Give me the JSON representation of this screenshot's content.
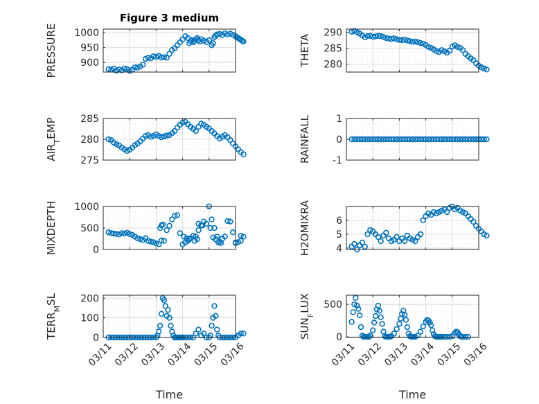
{
  "figure": {
    "title": "Figure 3 medium"
  },
  "colors": {
    "marker": "#0072BD",
    "axis": "#262626",
    "grid": "#dcdcdc"
  },
  "chart_data": [
    {
      "type": "scatter",
      "ylabel": "PRESSURE",
      "yticks": [
        900,
        950,
        1000
      ],
      "ylim": [
        868,
        1012
      ],
      "title": "Figure 3 medium",
      "grid": true,
      "x": [
        0.2,
        0.3,
        0.4,
        0.5,
        0.6,
        0.7,
        0.8,
        0.9,
        1.0,
        1.1,
        1.2,
        1.3,
        1.4,
        1.5,
        1.6,
        1.7,
        1.8,
        1.9,
        2.0,
        2.1,
        2.2,
        2.3,
        2.4,
        2.5,
        2.6,
        2.7,
        2.8,
        2.9,
        3.0,
        3.1,
        3.2,
        3.25,
        3.3,
        3.35,
        3.4,
        3.45,
        3.5,
        3.55,
        3.6,
        3.65,
        3.7,
        3.8,
        3.9,
        4.0,
        4.1,
        4.15,
        4.2,
        4.25,
        4.3,
        4.4,
        4.5,
        4.6,
        4.7,
        4.8,
        4.9,
        5.0,
        5.05,
        5.1,
        5.15,
        5.2,
        5.25,
        5.3
      ],
      "y": [
        878,
        876,
        880,
        873,
        877,
        874,
        880,
        878,
        872,
        876,
        884,
        883,
        887,
        893,
        912,
        916,
        914,
        921,
        919,
        922,
        917,
        918,
        916,
        929,
        942,
        948,
        958,
        968,
        978,
        988,
        982,
        965,
        972,
        975,
        968,
        972,
        978,
        982,
        975,
        970,
        978,
        973,
        969,
        975,
        958,
        965,
        985,
        990,
        994,
        996,
        992,
        998,
        994,
        997,
        993,
        988,
        985,
        982,
        979,
        976,
        973,
        970
      ]
    },
    {
      "type": "scatter",
      "ylabel": "THETA",
      "yticks": [
        280,
        285,
        290
      ],
      "ylim": [
        277.5,
        291
      ],
      "grid": true,
      "x": [
        0.2,
        0.3,
        0.4,
        0.5,
        0.6,
        0.7,
        0.8,
        0.9,
        1.0,
        1.1,
        1.2,
        1.3,
        1.4,
        1.5,
        1.6,
        1.7,
        1.8,
        1.9,
        2.0,
        2.1,
        2.2,
        2.3,
        2.4,
        2.5,
        2.6,
        2.7,
        2.8,
        2.9,
        3.0,
        3.1,
        3.2,
        3.3,
        3.4,
        3.5,
        3.6,
        3.7,
        3.8,
        3.9,
        4.0,
        4.1,
        4.2,
        4.3,
        4.4,
        4.5,
        4.6,
        4.7,
        4.8,
        4.9,
        5.0,
        5.1,
        5.2,
        5.3
      ],
      "y": [
        290.2,
        290.4,
        290.0,
        289.6,
        289.0,
        288.4,
        288.8,
        288.9,
        288.6,
        288.7,
        288.9,
        288.8,
        288.5,
        288.2,
        288.0,
        287.9,
        288.1,
        287.8,
        287.6,
        287.5,
        287.7,
        287.4,
        287.2,
        287.0,
        287.1,
        286.9,
        286.6,
        286.4,
        286.0,
        285.4,
        285.1,
        284.6,
        284.1,
        283.8,
        284.4,
        284.0,
        283.6,
        284.2,
        285.5,
        285.9,
        285.4,
        285.1,
        284.4,
        283.2,
        282.5,
        281.8,
        281.2,
        280.3,
        279.5,
        279.0,
        278.6,
        278.3
      ]
    },
    {
      "type": "scatter",
      "ylabel": "AIR_TEMP",
      "yticks": [
        275,
        280,
        285
      ],
      "ylim": [
        275,
        285
      ],
      "grid": true,
      "x": [
        0.2,
        0.3,
        0.4,
        0.5,
        0.6,
        0.7,
        0.8,
        0.9,
        1.0,
        1.1,
        1.2,
        1.3,
        1.4,
        1.5,
        1.6,
        1.7,
        1.8,
        1.9,
        2.0,
        2.1,
        2.2,
        2.3,
        2.4,
        2.5,
        2.6,
        2.7,
        2.8,
        2.9,
        3.0,
        3.1,
        3.2,
        3.3,
        3.4,
        3.5,
        3.6,
        3.7,
        3.8,
        3.9,
        4.0,
        4.1,
        4.2,
        4.3,
        4.4,
        4.5,
        4.6,
        4.7,
        4.8,
        4.9,
        5.0,
        5.1,
        5.2,
        5.3
      ],
      "y": [
        280.0,
        279.8,
        279.2,
        278.8,
        278.5,
        278.0,
        277.6,
        277.2,
        277.5,
        278.0,
        278.6,
        279.0,
        279.5,
        280.2,
        280.8,
        281.0,
        280.6,
        280.8,
        281.2,
        280.8,
        280.5,
        280.7,
        280.9,
        281.0,
        281.5,
        282.0,
        282.8,
        283.5,
        284.0,
        284.2,
        283.6,
        283.0,
        282.5,
        282.0,
        283.0,
        283.8,
        283.5,
        283.0,
        282.6,
        282.0,
        281.4,
        280.8,
        280.2,
        280.6,
        281.0,
        280.5,
        279.8,
        279.0,
        278.3,
        277.6,
        276.9,
        276.4
      ]
    },
    {
      "type": "scatter",
      "ylabel": "RAINFALL",
      "yticks": [
        -1,
        0,
        1
      ],
      "ylim": [
        -1,
        1
      ],
      "grid": true,
      "x": [
        0.2,
        0.3,
        0.4,
        0.5,
        0.6,
        0.7,
        0.8,
        0.9,
        1.0,
        1.1,
        1.2,
        1.3,
        1.4,
        1.5,
        1.6,
        1.7,
        1.8,
        1.9,
        2.0,
        2.1,
        2.2,
        2.3,
        2.4,
        2.5,
        2.6,
        2.7,
        2.8,
        2.9,
        3.0,
        3.1,
        3.2,
        3.3,
        3.4,
        3.5,
        3.6,
        3.7,
        3.8,
        3.9,
        4.0,
        4.1,
        4.2,
        4.3,
        4.4,
        4.5,
        4.6,
        4.7,
        4.8,
        4.9,
        5.0,
        5.1,
        5.2,
        5.3
      ],
      "y": [
        0,
        0,
        0,
        0,
        0,
        0,
        0,
        0,
        0,
        0,
        0,
        0,
        0,
        0,
        0,
        0,
        0,
        0,
        0,
        0,
        0,
        0,
        0,
        0,
        0,
        0,
        0,
        0,
        0,
        0,
        0,
        0,
        0,
        0,
        0,
        0,
        0,
        0,
        0,
        0,
        0,
        0,
        0,
        0,
        0,
        0,
        0,
        0,
        0,
        0,
        0,
        0
      ]
    },
    {
      "type": "scatter",
      "ylabel": "MIXDEPTH",
      "yticks": [
        0,
        500,
        1000
      ],
      "ylim": [
        0,
        1000
      ],
      "grid": true,
      "x": [
        0.2,
        0.3,
        0.4,
        0.5,
        0.6,
        0.7,
        0.8,
        0.9,
        1.0,
        1.1,
        1.2,
        1.3,
        1.4,
        1.5,
        1.6,
        1.7,
        1.8,
        1.9,
        2.0,
        2.1,
        2.2,
        2.3,
        2.4,
        2.5,
        2.6,
        2.7,
        2.8,
        2.9,
        3.0,
        3.1,
        3.2,
        3.3,
        3.4,
        3.5,
        3.6,
        3.7,
        3.8,
        3.9,
        4.0,
        4.1,
        4.2,
        4.3,
        4.4,
        4.5,
        4.6,
        4.7,
        4.8,
        4.9,
        5.0,
        5.1,
        5.2,
        5.3,
        2.15,
        2.2,
        2.25,
        3.05,
        3.15,
        3.25,
        3.45,
        3.55,
        3.6,
        3.75,
        4.05,
        4.15,
        4.25,
        4.35,
        4.45,
        5.0,
        5.2
      ],
      "y": [
        400,
        380,
        370,
        360,
        350,
        380,
        370,
        390,
        360,
        340,
        300,
        260,
        240,
        220,
        260,
        200,
        180,
        170,
        140,
        120,
        210,
        200,
        450,
        550,
        700,
        780,
        800,
        380,
        120,
        160,
        200,
        260,
        320,
        300,
        450,
        560,
        650,
        600,
        1000,
        700,
        500,
        300,
        180,
        250,
        300,
        660,
        650,
        400,
        150,
        170,
        200,
        300,
        500,
        560,
        580,
        300,
        260,
        240,
        200,
        240,
        600,
        560,
        500,
        280,
        240,
        160,
        150,
        160,
        320
      ]
    },
    {
      "type": "scatter",
      "ylabel": "H2OMIXRA",
      "yticks": [
        4,
        5,
        6
      ],
      "ylim": [
        3.9,
        7.0
      ],
      "grid": true,
      "x": [
        0.2,
        0.3,
        0.4,
        0.5,
        0.6,
        0.7,
        0.8,
        0.9,
        1.0,
        1.1,
        1.2,
        1.3,
        1.4,
        1.5,
        1.6,
        1.7,
        1.8,
        1.9,
        2.0,
        2.1,
        2.2,
        2.3,
        2.4,
        2.5,
        2.6,
        2.7,
        2.8,
        2.9,
        3.0,
        3.1,
        3.2,
        3.3,
        3.4,
        3.5,
        3.6,
        3.7,
        3.8,
        3.9,
        4.0,
        4.1,
        4.2,
        4.3,
        4.4,
        4.5,
        4.6,
        4.7,
        4.8,
        4.9,
        5.0,
        5.1,
        5.2,
        5.3
      ],
      "y": [
        4.1,
        4.3,
        3.9,
        4.2,
        4.4,
        4.1,
        5.0,
        5.3,
        5.2,
        5.0,
        4.8,
        4.5,
        4.9,
        5.1,
        4.7,
        4.5,
        4.6,
        4.8,
        4.5,
        4.7,
        4.5,
        4.9,
        4.7,
        4.6,
        4.5,
        4.8,
        5.0,
        6.0,
        6.3,
        6.5,
        6.4,
        6.6,
        6.5,
        6.6,
        6.7,
        6.8,
        6.6,
        6.9,
        7.0,
        6.8,
        6.9,
        6.7,
        6.6,
        6.5,
        6.3,
        6.1,
        5.9,
        5.6,
        5.4,
        5.2,
        5.0,
        4.9
      ]
    },
    {
      "type": "scatter",
      "ylabel": "TERR_MSL",
      "yticks": [
        0,
        100,
        200
      ],
      "ylim": [
        0,
        215
      ],
      "grid": true,
      "xlabel": "Time",
      "xticks": [
        "03/11",
        "03/12",
        "03/13",
        "03/14",
        "03/15",
        "03/16"
      ],
      "x": [
        0.2,
        0.3,
        0.4,
        0.5,
        0.6,
        0.7,
        0.8,
        0.9,
        1.0,
        1.1,
        1.2,
        1.3,
        1.4,
        1.5,
        1.6,
        1.7,
        1.8,
        1.9,
        2.0,
        2.05,
        2.1,
        2.15,
        2.2,
        2.25,
        2.3,
        2.35,
        2.4,
        2.45,
        2.5,
        2.55,
        2.6,
        2.65,
        2.7,
        2.75,
        2.8,
        2.85,
        2.9,
        2.95,
        3.0,
        3.1,
        3.2,
        3.3,
        3.4,
        3.5,
        3.6,
        3.7,
        3.8,
        3.9,
        4.0,
        4.05,
        4.1,
        4.15,
        4.2,
        4.25,
        4.3,
        4.35,
        4.4,
        4.5,
        4.6,
        4.7,
        4.8,
        4.9,
        5.0,
        5.1,
        5.2,
        5.3
      ],
      "y": [
        0,
        0,
        0,
        0,
        0,
        0,
        0,
        0,
        0,
        0,
        0,
        0,
        0,
        0,
        0,
        0,
        0,
        0,
        0,
        10,
        30,
        60,
        120,
        200,
        190,
        160,
        110,
        140,
        100,
        60,
        30,
        10,
        0,
        0,
        0,
        0,
        0,
        0,
        0,
        0,
        0,
        0,
        0,
        20,
        40,
        10,
        20,
        0,
        0,
        10,
        60,
        100,
        160,
        110,
        40,
        10,
        0,
        0,
        0,
        0,
        0,
        0,
        0,
        10,
        20,
        20
      ]
    },
    {
      "type": "scatter",
      "ylabel": "SUN_FLUX",
      "yticks": [
        0,
        500
      ],
      "ylim": [
        -10,
        640
      ],
      "grid": true,
      "xlabel": "Time",
      "xticks": [
        "03/11",
        "03/12",
        "03/13",
        "03/14",
        "03/15",
        "03/16"
      ],
      "x": [
        0.2,
        0.25,
        0.3,
        0.35,
        0.4,
        0.45,
        0.5,
        0.55,
        0.6,
        0.65,
        0.7,
        0.75,
        0.8,
        0.85,
        0.9,
        1.0,
        1.05,
        1.1,
        1.15,
        1.2,
        1.25,
        1.3,
        1.35,
        1.4,
        1.45,
        1.5,
        1.55,
        1.6,
        1.65,
        1.7,
        1.8,
        1.9,
        2.0,
        2.05,
        2.1,
        2.15,
        2.2,
        2.25,
        2.3,
        2.35,
        2.4,
        2.45,
        2.5,
        2.55,
        2.6,
        2.7,
        2.8,
        2.9,
        3.0,
        3.05,
        3.1,
        3.15,
        3.2,
        3.25,
        3.3,
        3.35,
        3.4,
        3.45,
        3.5,
        3.55,
        3.6,
        3.7,
        3.8,
        3.9,
        4.0,
        4.1,
        4.15,
        4.2,
        4.25,
        4.3,
        4.35,
        4.4,
        4.5,
        4.6
      ],
      "y": [
        230,
        380,
        500,
        600,
        480,
        430,
        330,
        150,
        20,
        0,
        0,
        0,
        0,
        0,
        20,
        100,
        220,
        320,
        420,
        480,
        400,
        300,
        200,
        80,
        10,
        0,
        0,
        0,
        0,
        10,
        50,
        120,
        200,
        280,
        350,
        400,
        340,
        260,
        150,
        50,
        10,
        0,
        0,
        0,
        0,
        20,
        80,
        160,
        230,
        260,
        250,
        220,
        180,
        100,
        40,
        10,
        0,
        0,
        0,
        0,
        0,
        0,
        0,
        0,
        10,
        60,
        80,
        70,
        40,
        10,
        0,
        0,
        0,
        0
      ]
    }
  ]
}
